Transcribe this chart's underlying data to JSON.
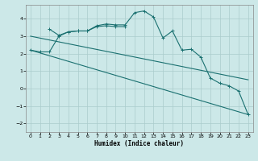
{
  "title": "",
  "xlabel": "Humidex (Indice chaleur)",
  "bg_color": "#cce8e8",
  "grid_color": "#aacccc",
  "line_color": "#1a7070",
  "xlim": [
    -0.5,
    23.5
  ],
  "ylim": [
    -2.5,
    4.8
  ],
  "yticks": [
    -2,
    -1,
    0,
    1,
    2,
    3,
    4
  ],
  "xticks": [
    0,
    1,
    2,
    3,
    4,
    5,
    6,
    7,
    8,
    9,
    10,
    11,
    12,
    13,
    14,
    15,
    16,
    17,
    18,
    19,
    20,
    21,
    22,
    23
  ],
  "line1_x": [
    0,
    1,
    2,
    3,
    4,
    5,
    6,
    7,
    8,
    9,
    10,
    11,
    12,
    13,
    14,
    15,
    16,
    17,
    18,
    19,
    20,
    21,
    22,
    23
  ],
  "line1_y": [
    2.2,
    2.1,
    2.1,
    3.0,
    3.25,
    3.3,
    3.3,
    3.6,
    3.7,
    3.65,
    3.65,
    4.35,
    4.45,
    4.1,
    2.9,
    3.3,
    2.2,
    2.25,
    1.8,
    0.6,
    0.3,
    0.15,
    -0.15,
    -1.5
  ],
  "line2_x": [
    2,
    3,
    4,
    5,
    6,
    7,
    8,
    9,
    10
  ],
  "line2_y": [
    3.4,
    3.05,
    3.25,
    3.3,
    3.3,
    3.55,
    3.6,
    3.55,
    3.55
  ],
  "line3_x": [
    0,
    23
  ],
  "line3_y": [
    2.2,
    -1.5
  ],
  "line4_x": [
    0,
    23
  ],
  "line4_y": [
    3.0,
    0.5
  ],
  "line_width": 0.8,
  "marker_size": 2.5,
  "xlabel_fontsize": 5.5,
  "tick_fontsize": 4.5
}
